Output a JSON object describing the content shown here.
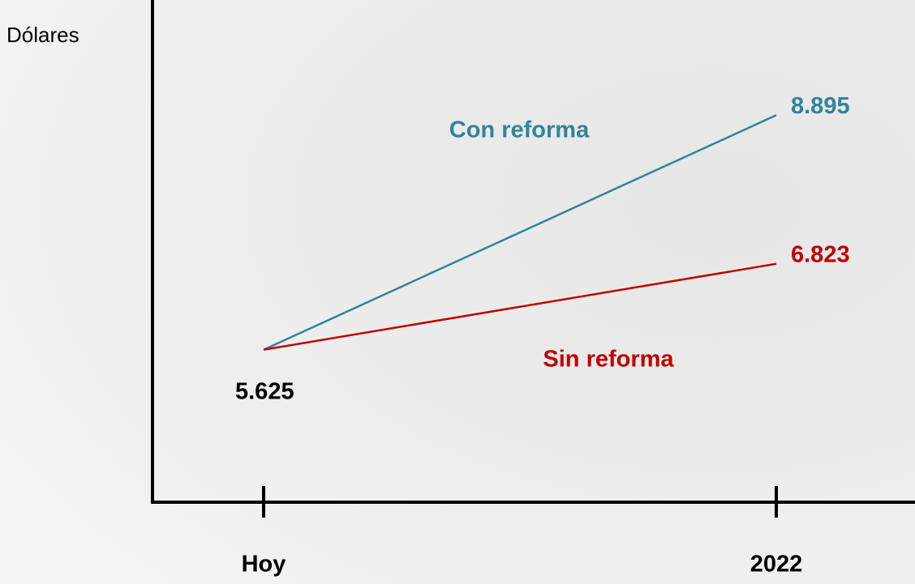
{
  "chart_data": {
    "type": "line",
    "ylabel": "Dólares",
    "categories": [
      "Hoy",
      "2022"
    ],
    "series": [
      {
        "name": "Con reforma",
        "color": "#31849b",
        "values": [
          5625,
          8895
        ],
        "value_labels": [
          "5.625",
          "8.895"
        ]
      },
      {
        "name": "Sin reforma",
        "color": "#c00000",
        "values": [
          5625,
          6823
        ],
        "value_labels": [
          null,
          "6.823"
        ]
      }
    ],
    "ylim": [
      3500,
      10500
    ]
  }
}
